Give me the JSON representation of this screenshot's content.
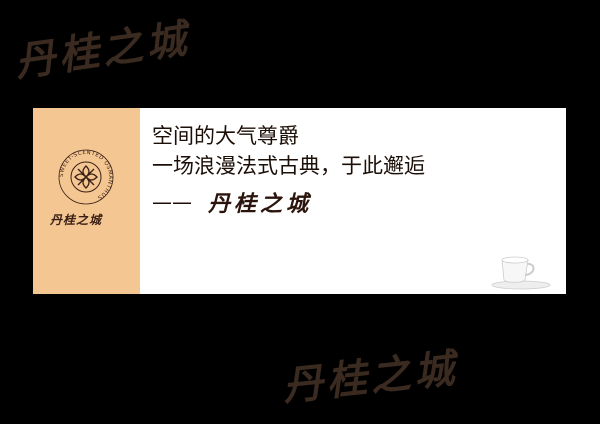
{
  "watermark": {
    "top_text": "丹桂之城",
    "bottom_text": "丹桂之城"
  },
  "banner": {
    "line1": "空间的大气尊爵",
    "line2": "一场浪漫法式古典，于此邂逅",
    "dash": "——",
    "signature": "丹桂之城"
  },
  "logo": {
    "seal_text": "SWEET-SCENTED OSMANTHUS",
    "brand": "丹桂之城"
  },
  "colors": {
    "background": "#000000",
    "panel": "#ffffff",
    "sidebar": "#f4c692",
    "text": "#1c0f08"
  }
}
